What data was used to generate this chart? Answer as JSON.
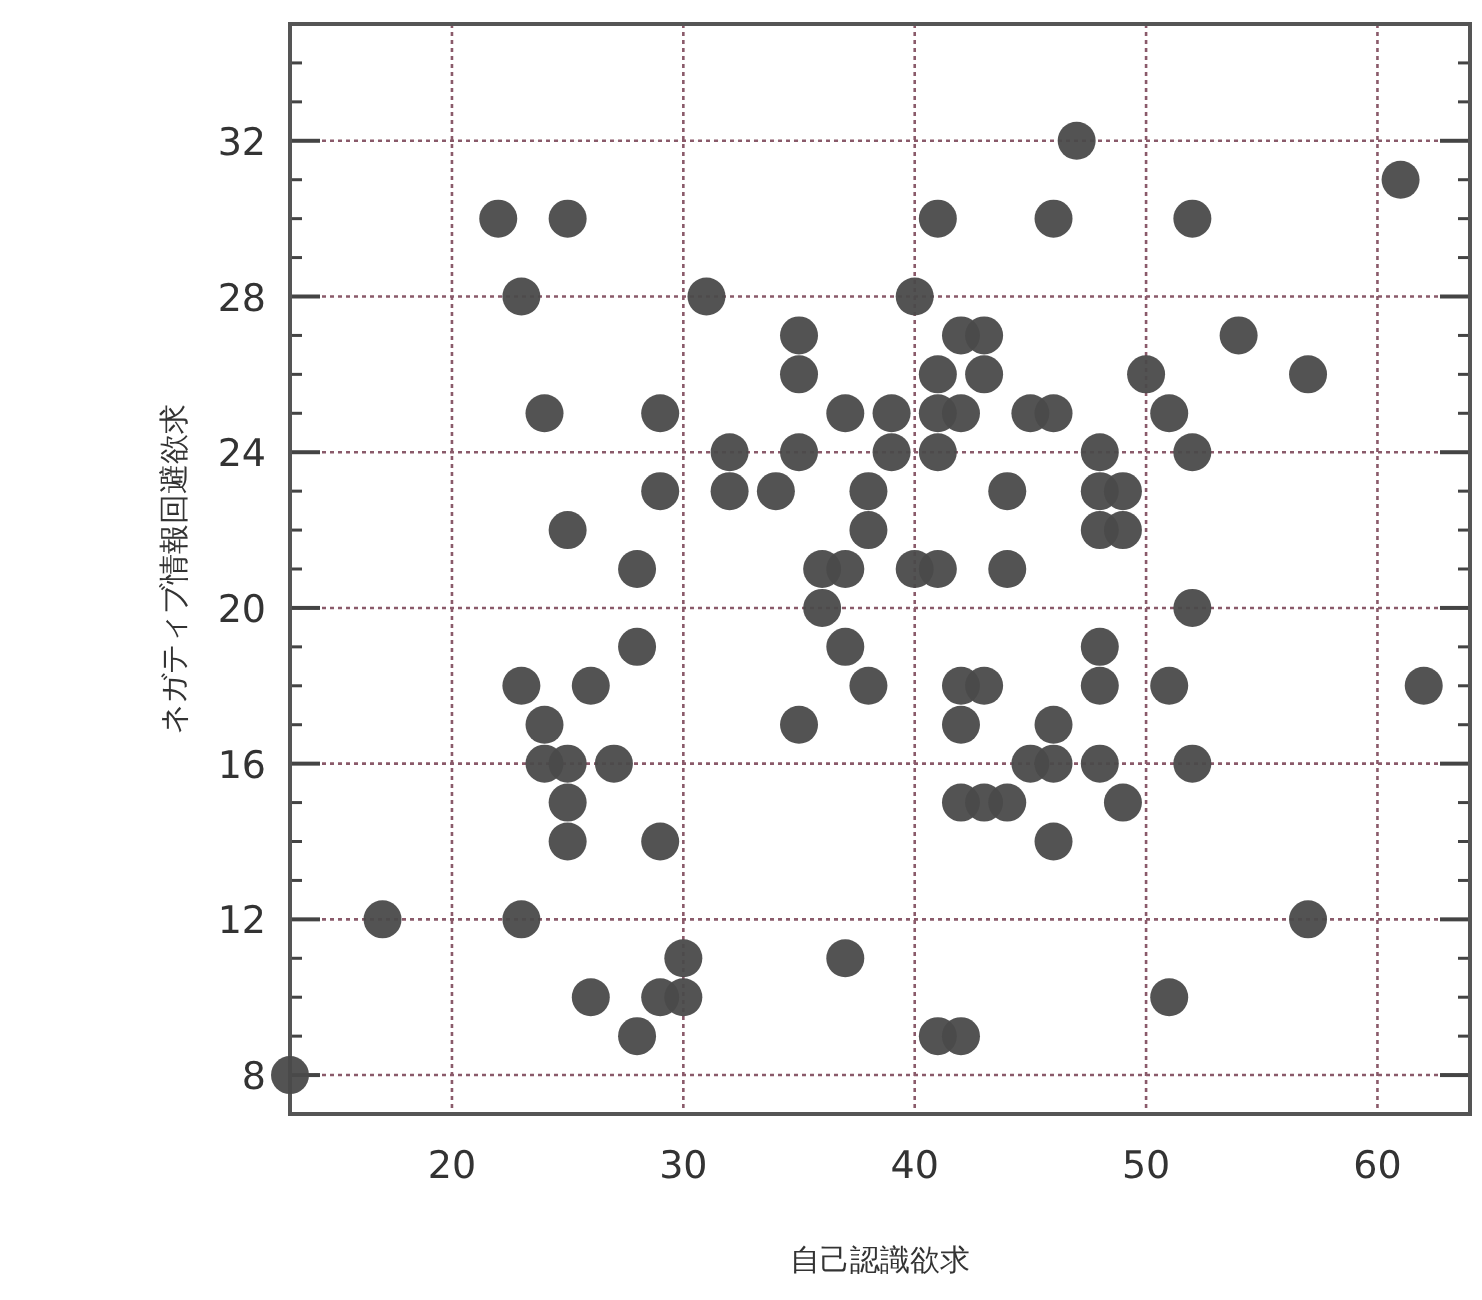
{
  "chart_data": {
    "type": "scatter",
    "xlabel": "自己認識欲求",
    "ylabel": "ネガティブ情報回避欲求",
    "xlim": [
      13,
      64
    ],
    "ylim": [
      7,
      35
    ],
    "xticks": [
      20,
      30,
      40,
      50,
      60
    ],
    "yticks": [
      {
        "value": 7,
        "label": null
      },
      8,
      {
        "value": 9,
        "label": null
      },
      {
        "value": 10,
        "label": null
      },
      {
        "value": 11,
        "label": null
      },
      12,
      {
        "value": 13,
        "label": null
      },
      {
        "value": 14,
        "label": null
      },
      {
        "value": 15,
        "label": null
      },
      16,
      {
        "value": 17,
        "label": null
      },
      {
        "value": 18,
        "label": null
      },
      {
        "value": 19,
        "label": null
      },
      20,
      {
        "value": 21,
        "label": null
      },
      {
        "value": 22,
        "label": null
      },
      {
        "value": 23,
        "label": null
      },
      24,
      {
        "value": 25,
        "label": null
      },
      {
        "value": 26,
        "label": null
      },
      {
        "value": 27,
        "label": null
      },
      28,
      {
        "value": 29,
        "label": null
      },
      {
        "value": 30,
        "label": null
      },
      {
        "value": 31,
        "label": null
      },
      32,
      {
        "value": 33,
        "label": null
      },
      {
        "value": 34,
        "label": null
      },
      {
        "value": 35,
        "label": null
      }
    ],
    "grid": true,
    "marker": "circle",
    "series": [
      {
        "color": "#4a4a4a",
        "x": [
          13,
          17,
          22,
          25,
          23,
          31,
          35,
          35,
          24,
          29,
          37,
          39,
          32,
          35,
          39,
          29,
          32,
          34,
          38,
          25,
          38,
          28,
          36,
          37,
          36,
          28,
          37,
          47,
          61,
          41,
          46,
          52,
          40,
          42,
          43,
          54,
          41,
          43,
          50,
          57,
          41,
          42,
          45,
          46,
          51,
          41,
          48,
          52,
          44,
          48,
          49,
          48,
          49,
          40,
          41,
          44,
          52,
          48,
          23,
          26,
          24,
          24,
          25,
          27,
          25,
          25,
          29,
          23,
          30,
          37,
          26,
          29,
          30,
          28,
          35,
          38,
          42,
          43,
          48,
          51,
          62,
          42,
          46,
          45,
          46,
          48,
          52,
          42,
          43,
          44,
          49,
          46,
          57,
          51,
          41,
          42
        ],
        "values": [
          8,
          12,
          30,
          30,
          28,
          28,
          27,
          26,
          25,
          25,
          25,
          25,
          24,
          24,
          24,
          23,
          23,
          23,
          23,
          22,
          22,
          21,
          21,
          21,
          20,
          19,
          19,
          32,
          31,
          30,
          30,
          30,
          28,
          27,
          27,
          27,
          26,
          26,
          26,
          26,
          25,
          25,
          25,
          25,
          25,
          24,
          24,
          24,
          23,
          23,
          23,
          22,
          22,
          21,
          21,
          21,
          20,
          19,
          18,
          18,
          17,
          16,
          16,
          16,
          15,
          14,
          14,
          12,
          11,
          11,
          10,
          10,
          10,
          9,
          17,
          18,
          18,
          18,
          18,
          18,
          18,
          17,
          17,
          16,
          16,
          16,
          16,
          15,
          15,
          15,
          15,
          14,
          12,
          10,
          9,
          9
        ]
      }
    ]
  }
}
